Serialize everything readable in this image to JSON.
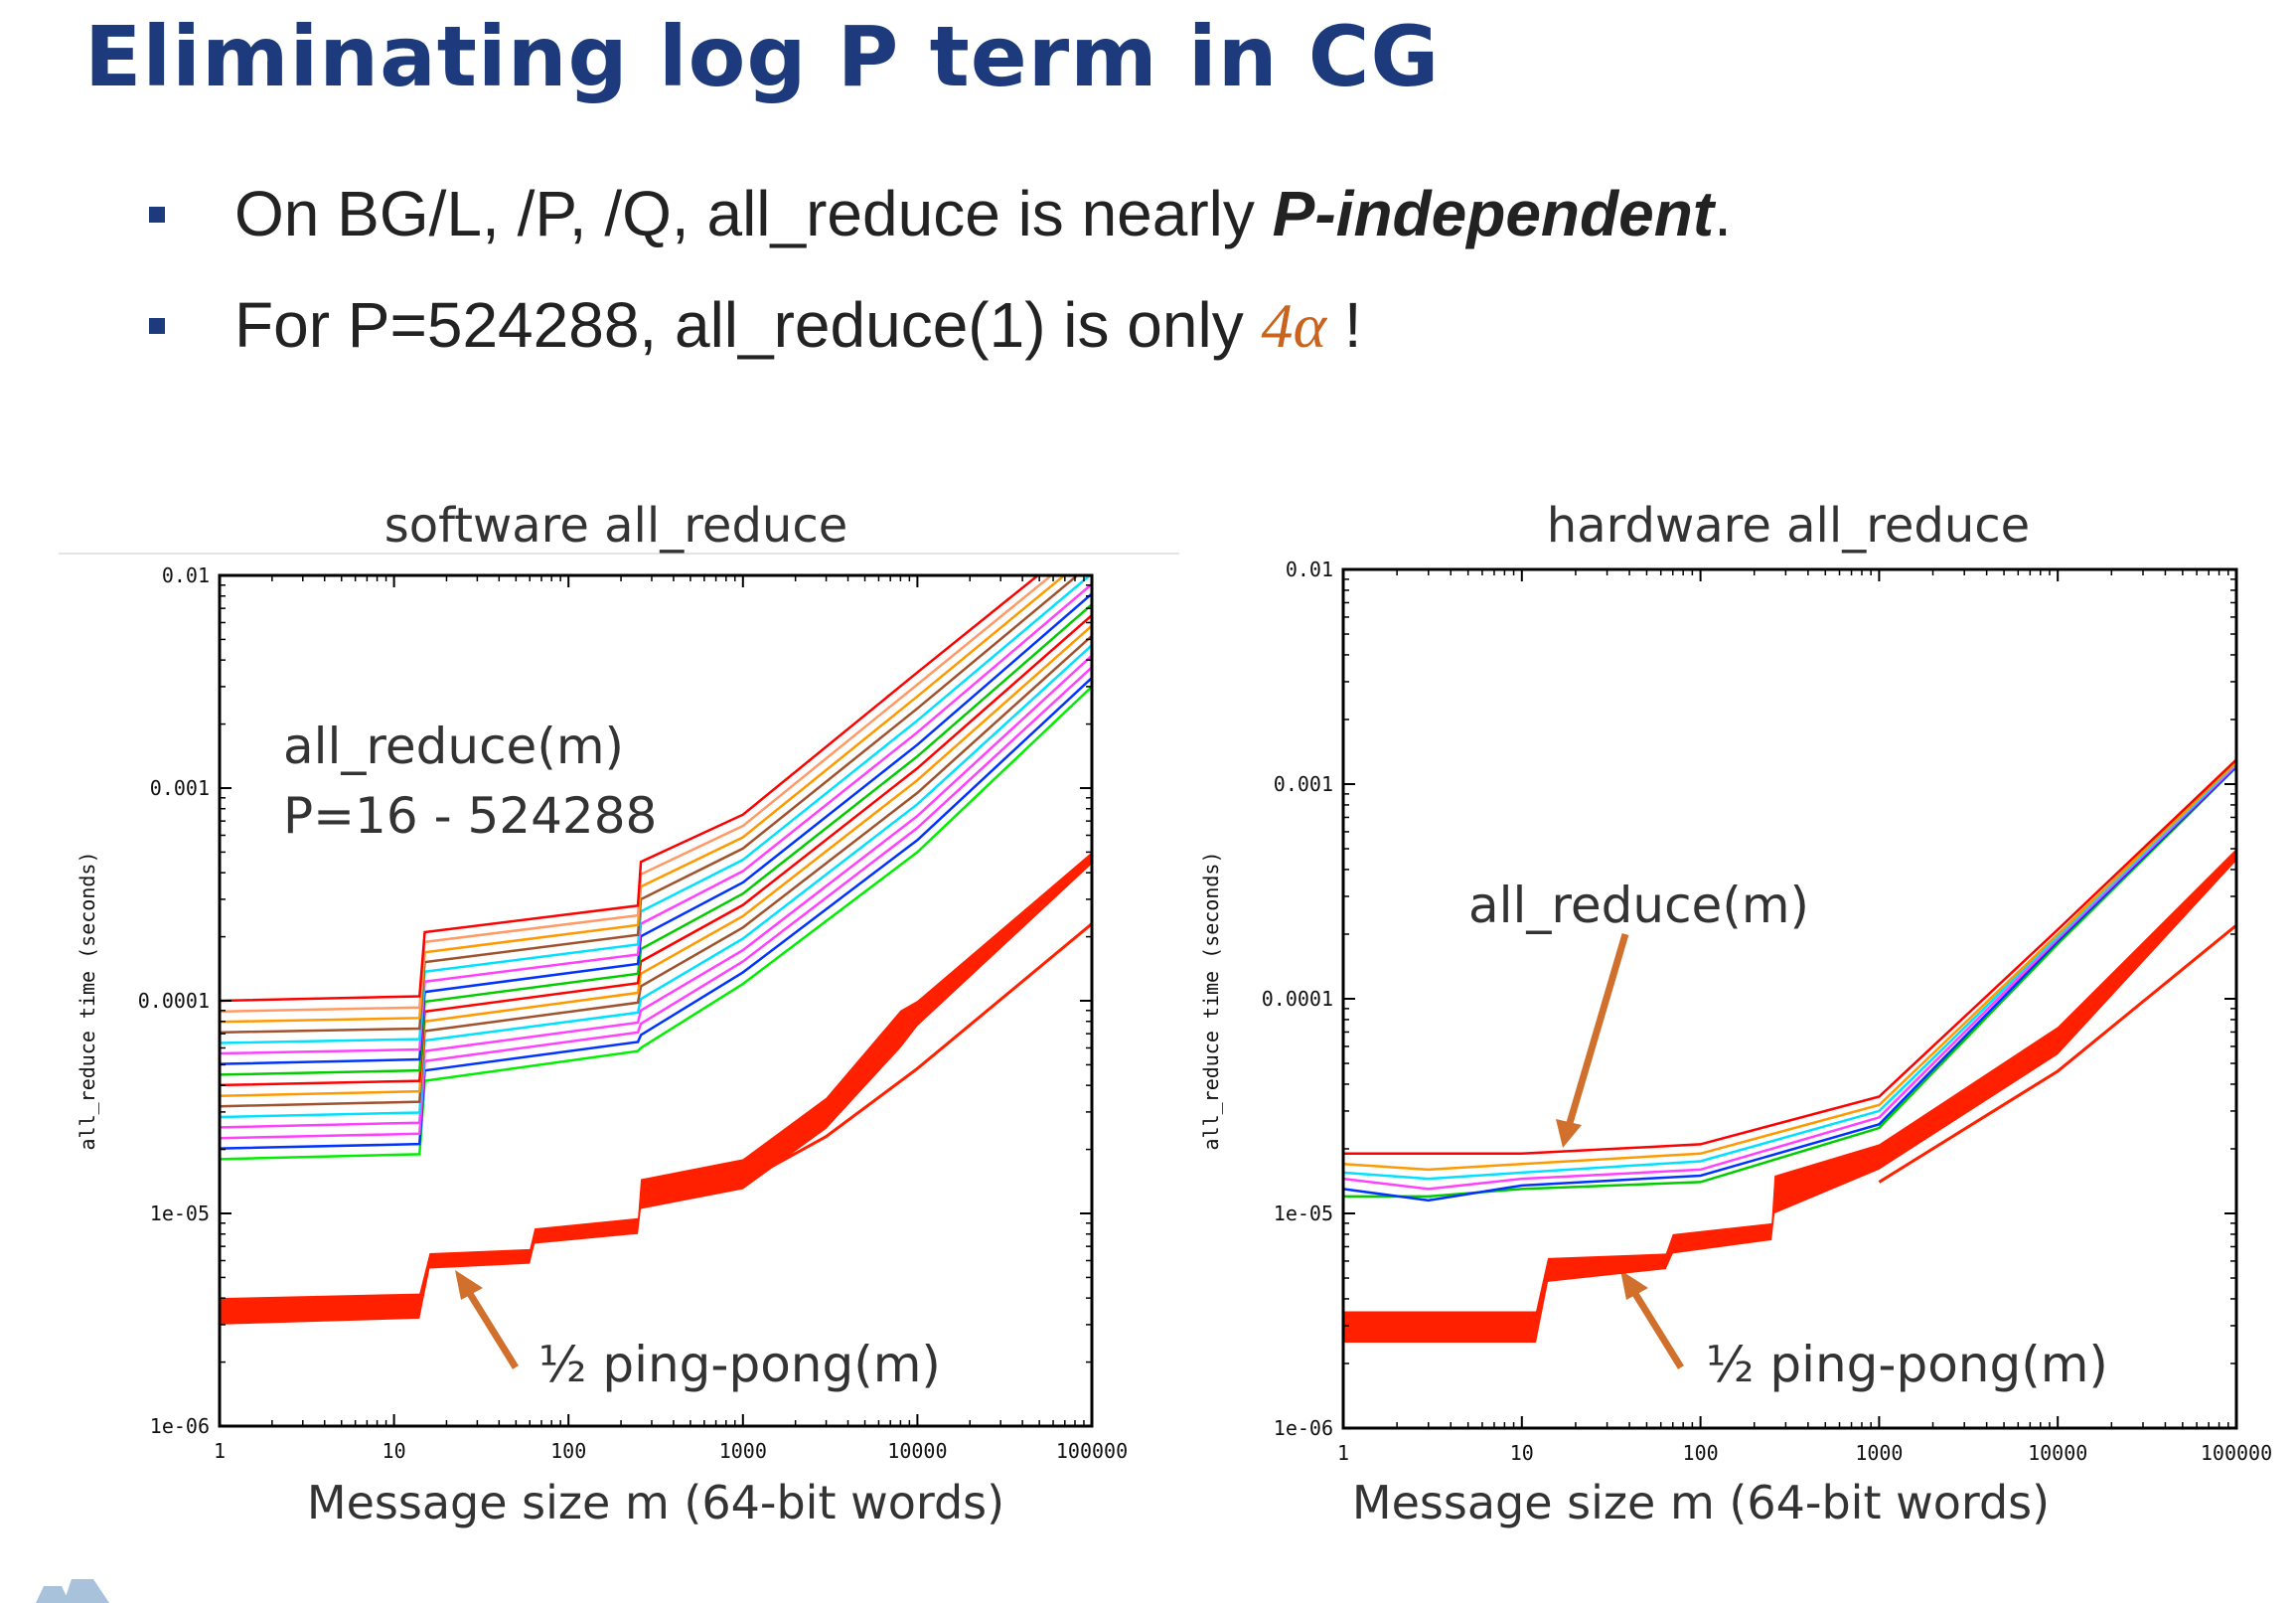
{
  "slide": {
    "title": "Eliminating log P term in CG",
    "bullets": [
      {
        "pre": "On BG/L, /P, /Q, all_reduce is nearly ",
        "emph": "P-independent",
        "post": "."
      },
      {
        "pre": "For P=524288, all_reduce(1) is only ",
        "emph": "4α",
        "post": " !"
      }
    ],
    "colors": {
      "title": "#1d3b7c",
      "accent": "#c8641e",
      "arrow": "#d0702c",
      "pingpong": "#ff2000"
    }
  },
  "chart_data": [
    {
      "type": "line",
      "title": "software all_reduce",
      "xlabel": "Message size m (64-bit words)",
      "ylabel": "all_reduce time (seconds)",
      "xscale": "log",
      "yscale": "log",
      "xlim": [
        1,
        100000
      ],
      "ylim": [
        1e-06,
        0.01
      ],
      "xticks": [
        "1",
        "10",
        "100",
        "1000",
        "10000",
        "100000"
      ],
      "yticks": [
        "0.01",
        "0.001",
        "0.0001",
        "1e-05",
        "1e-06"
      ],
      "grid": false,
      "annotations": [
        "all_reduce(m)",
        "P=16 - 524288",
        "½ ping-pong(m)"
      ],
      "x": [
        1,
        14,
        15,
        250,
        260,
        1000,
        10000,
        100000
      ],
      "series": [
        {
          "color": "#ff0000",
          "values": [
            0.0001,
            0.000105,
            0.00021,
            0.00028,
            0.00045,
            0.00075,
            0.0035,
            0.016
          ]
        },
        {
          "color": "#ff9966",
          "values": [
            8.9e-05,
            9.3e-05,
            0.000189,
            0.000252,
            0.000393,
            0.000664,
            0.00307,
            0.0143
          ]
        },
        {
          "color": "#ff9900",
          "values": [
            7.96e-05,
            8.3e-05,
            0.000169,
            0.000227,
            0.000344,
            0.000587,
            0.0027,
            0.0128
          ]
        },
        {
          "color": "#a0522d",
          "values": [
            7.1e-05,
            7.4e-05,
            0.000152,
            0.000204,
            0.0003,
            0.00052,
            0.00237,
            0.0114
          ]
        },
        {
          "color": "#00e0ff",
          "values": [
            6.33e-05,
            6.6e-05,
            0.000137,
            0.000184,
            0.000263,
            0.00046,
            0.00208,
            0.0102
          ]
        },
        {
          "color": "#ff40ff",
          "values": [
            5.65e-05,
            5.9e-05,
            0.000123,
            0.000165,
            0.00023,
            0.000407,
            0.00183,
            0.0091
          ]
        },
        {
          "color": "#0033ff",
          "values": [
            5.04e-05,
            5.3e-05,
            0.00011,
            0.000149,
            0.000201,
            0.00036,
            0.0016,
            0.0082
          ]
        },
        {
          "color": "#00cc00",
          "values": [
            4.49e-05,
            4.7e-05,
            9.9e-05,
            0.000134,
            0.000175,
            0.000319,
            0.00141,
            0.0073
          ]
        },
        {
          "color": "#ff0000",
          "values": [
            4.01e-05,
            4.2e-05,
            8.9e-05,
            0.000121,
            0.000153,
            0.000282,
            0.00124,
            0.0065
          ]
        },
        {
          "color": "#ff9900",
          "values": [
            3.57e-05,
            3.75e-05,
            8e-05,
            0.000109,
            0.000134,
            0.00025,
            0.00109,
            0.0058
          ]
        },
        {
          "color": "#a0522d",
          "values": [
            3.19e-05,
            3.35e-05,
            7.2e-05,
            9.8e-05,
            0.000117,
            0.000221,
            0.00095,
            0.0052
          ]
        },
        {
          "color": "#00e0ff",
          "values": [
            2.84e-05,
            2.98e-05,
            6.5e-05,
            8.8e-05,
            0.000102,
            0.000196,
            0.00084,
            0.0047
          ]
        },
        {
          "color": "#ff40ff",
          "values": [
            2.54e-05,
            2.67e-05,
            5.8e-05,
            7.9e-05,
            9e-05,
            0.000173,
            0.00074,
            0.0042
          ]
        },
        {
          "color": "#ff40ff",
          "values": [
            2.26e-05,
            2.37e-05,
            5.2e-05,
            7.1e-05,
            7.8e-05,
            0.000153,
            0.00065,
            0.0037
          ]
        },
        {
          "color": "#0033ff",
          "values": [
            2.02e-05,
            2.12e-05,
            4.7e-05,
            6.4e-05,
            6.9e-05,
            0.000136,
            0.00057,
            0.0033
          ]
        },
        {
          "color": "#00ee00",
          "values": [
            1.8e-05,
            1.9e-05,
            4.2e-05,
            5.8e-05,
            6e-05,
            0.00012,
            0.0005,
            0.003
          ]
        }
      ],
      "pingpong_band": {
        "x": [
          1,
          14,
          16,
          60,
          64,
          250,
          260,
          1000,
          3000,
          8000,
          10000,
          100000
        ],
        "upper": [
          4e-06,
          4.2e-06,
          6.5e-06,
          6.8e-06,
          8.5e-06,
          9.5e-06,
          1.45e-05,
          1.8e-05,
          3.5e-05,
          9e-05,
          0.0001,
          0.0005
        ],
        "lower": [
          3e-06,
          3.2e-06,
          5.5e-06,
          5.8e-06,
          7.2e-06,
          8e-06,
          1.05e-05,
          1.3e-05,
          2.5e-05,
          6e-05,
          7.6e-05,
          0.00044
        ]
      },
      "pingpong_line": {
        "x": [
          1000,
          3000,
          10000,
          100000
        ],
        "values": [
          1.4e-05,
          2.3e-05,
          4.8e-05,
          0.00023
        ]
      }
    },
    {
      "type": "line",
      "title": "hardware all_reduce",
      "xlabel": "Message size m (64-bit words)",
      "ylabel": "all_reduce time (seconds)",
      "xscale": "log",
      "yscale": "log",
      "xlim": [
        1,
        100000
      ],
      "ylim": [
        1e-06,
        0.01
      ],
      "xticks": [
        "1",
        "10",
        "100",
        "1000",
        "10000",
        "100000"
      ],
      "yticks": [
        "0.01",
        "0.001",
        "0.0001",
        "1e-05",
        "1e-06"
      ],
      "grid": false,
      "annotations": [
        "all_reduce(m)",
        "½ ping-pong(m)"
      ],
      "x": [
        1,
        3,
        10,
        100,
        1000,
        10000,
        100000
      ],
      "series": [
        {
          "color": "#ff0000",
          "values": [
            1.9e-05,
            1.9e-05,
            1.9e-05,
            2.1e-05,
            3.5e-05,
            0.00021,
            0.0013
          ]
        },
        {
          "color": "#ff9900",
          "values": [
            1.7e-05,
            1.6e-05,
            1.7e-05,
            1.9e-05,
            3.2e-05,
            0.0002,
            0.00127
          ]
        },
        {
          "color": "#00e0ff",
          "values": [
            1.55e-05,
            1.45e-05,
            1.55e-05,
            1.75e-05,
            3e-05,
            0.000195,
            0.00125
          ]
        },
        {
          "color": "#ff40ff",
          "values": [
            1.45e-05,
            1.3e-05,
            1.45e-05,
            1.6e-05,
            2.8e-05,
            0.00019,
            0.00123
          ]
        },
        {
          "color": "#0033ff",
          "values": [
            1.3e-05,
            1.15e-05,
            1.35e-05,
            1.5e-05,
            2.6e-05,
            0.000185,
            0.00121
          ]
        },
        {
          "color": "#00cc00",
          "values": [
            1.2e-05,
            1.2e-05,
            1.3e-05,
            1.4e-05,
            2.5e-05,
            0.00018,
            0.0012
          ]
        }
      ],
      "pingpong_band": {
        "x": [
          1,
          12,
          14,
          64,
          70,
          250,
          260,
          1000,
          10000,
          100000
        ],
        "upper": [
          3.5e-06,
          3.5e-06,
          6.2e-06,
          6.5e-06,
          8e-06,
          9e-06,
          1.5e-05,
          2.1e-05,
          7.4e-05,
          0.0005
        ],
        "lower": [
          2.5e-06,
          2.5e-06,
          4.8e-06,
          5.5e-06,
          6.5e-06,
          7.5e-06,
          1e-05,
          1.6e-05,
          5.5e-05,
          0.00044
        ]
      },
      "pingpong_line": {
        "x": [
          1000,
          10000,
          100000
        ],
        "values": [
          1.4e-05,
          4.6e-05,
          0.00022
        ]
      }
    }
  ]
}
